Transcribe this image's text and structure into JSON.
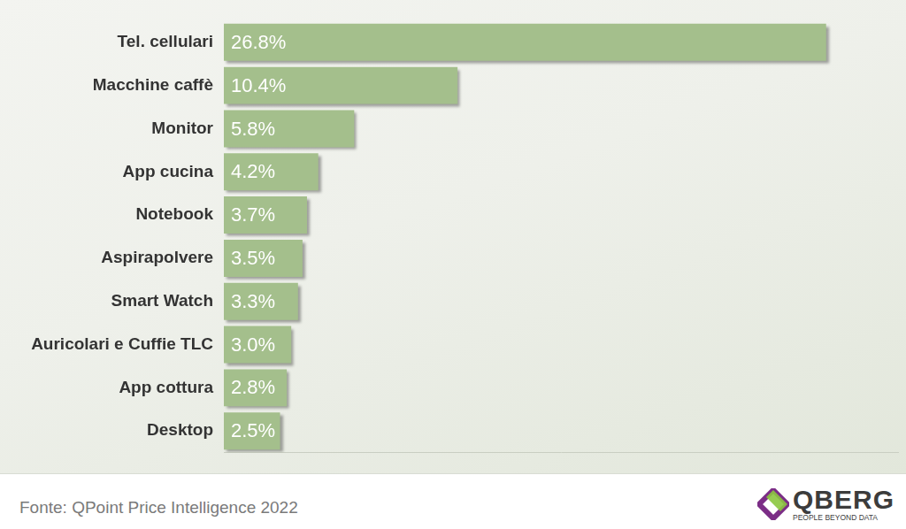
{
  "chart_data": {
    "type": "bar",
    "orientation": "horizontal",
    "categories": [
      "Tel. cellulari",
      "Macchine caffè",
      "Monitor",
      "App cucina",
      "Notebook",
      "Aspirapolvere",
      "Smart Watch",
      "Auricolari e Cuffie TLC",
      "App cottura",
      "Desktop"
    ],
    "values": [
      26.8,
      10.4,
      5.8,
      4.2,
      3.7,
      3.5,
      3.3,
      3.0,
      2.8,
      2.5
    ],
    "value_labels": [
      "26.8%",
      "10.4%",
      "5.8%",
      "4.2%",
      "3.7%",
      "3.5%",
      "3.3%",
      "3.0%",
      "2.8%",
      "2.5%"
    ],
    "color": "#a4bf8c",
    "xlim": [
      0,
      30
    ],
    "grid": false,
    "data_labels": true,
    "tick_labels": "y"
  },
  "footer": {
    "source": "Fonte: QPoint Price Intelligence 2022",
    "logo": "QBERG",
    "tagline": "PEOPLE BEYOND DATA"
  }
}
